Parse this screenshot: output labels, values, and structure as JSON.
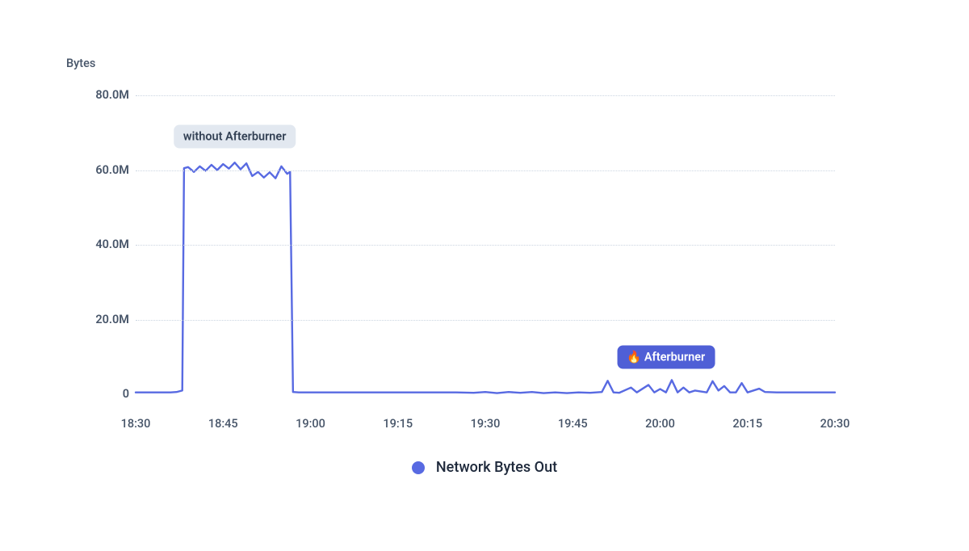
{
  "chart": {
    "type": "line",
    "y_title": "Bytes",
    "line_color": "#586ae2",
    "line_width": 2.4,
    "background_color": "#ffffff",
    "grid_color": "#cbd5e1",
    "text_color": "#475569",
    "xlim_minutes": [
      0,
      120
    ],
    "ylim": [
      0,
      80
    ],
    "y_ticks": [
      0,
      20,
      40,
      60,
      80
    ],
    "y_tick_labels": [
      "0",
      "20.0M",
      "40.0M",
      "60.0M",
      "80.0M"
    ],
    "x_ticks_minutes": [
      0,
      15,
      30,
      45,
      60,
      75,
      90,
      105,
      120
    ],
    "x_tick_labels": [
      "18:30",
      "18:45",
      "19:00",
      "19:15",
      "19:30",
      "19:45",
      "20:00",
      "20:15",
      "20:30"
    ],
    "series": [
      {
        "name": "Network Bytes Out",
        "color": "#586ae2",
        "points": [
          [
            0,
            0.5
          ],
          [
            2,
            0.5
          ],
          [
            4,
            0.5
          ],
          [
            6,
            0.5
          ],
          [
            7,
            0.6
          ],
          [
            8,
            1.0
          ],
          [
            8.3,
            60.5
          ],
          [
            9,
            60.8
          ],
          [
            10,
            59.5
          ],
          [
            11,
            61.0
          ],
          [
            12,
            59.8
          ],
          [
            13,
            61.4
          ],
          [
            14,
            60.0
          ],
          [
            15,
            61.6
          ],
          [
            16,
            60.4
          ],
          [
            17,
            62.0
          ],
          [
            18,
            60.2
          ],
          [
            19,
            61.8
          ],
          [
            20,
            58.4
          ],
          [
            21,
            59.5
          ],
          [
            22,
            58.0
          ],
          [
            23,
            59.4
          ],
          [
            24,
            57.8
          ],
          [
            25,
            61.0
          ],
          [
            26,
            59.0
          ],
          [
            26.5,
            59.5
          ],
          [
            27,
            0.6
          ],
          [
            28,
            0.5
          ],
          [
            30,
            0.5
          ],
          [
            35,
            0.5
          ],
          [
            40,
            0.5
          ],
          [
            45,
            0.5
          ],
          [
            50,
            0.5
          ],
          [
            55,
            0.5
          ],
          [
            58,
            0.4
          ],
          [
            60,
            0.6
          ],
          [
            62,
            0.3
          ],
          [
            64,
            0.6
          ],
          [
            66,
            0.4
          ],
          [
            68,
            0.6
          ],
          [
            70,
            0.3
          ],
          [
            72,
            0.5
          ],
          [
            74,
            0.3
          ],
          [
            76,
            0.5
          ],
          [
            78,
            0.4
          ],
          [
            80,
            0.6
          ],
          [
            81,
            3.6
          ],
          [
            82,
            0.5
          ],
          [
            83,
            0.4
          ],
          [
            85,
            1.8
          ],
          [
            86,
            0.5
          ],
          [
            88,
            2.5
          ],
          [
            89,
            0.5
          ],
          [
            90,
            1.4
          ],
          [
            91,
            0.5
          ],
          [
            92,
            3.8
          ],
          [
            93,
            0.5
          ],
          [
            94,
            1.8
          ],
          [
            95,
            0.5
          ],
          [
            96,
            1.0
          ],
          [
            98,
            0.5
          ],
          [
            99,
            3.5
          ],
          [
            100,
            1.0
          ],
          [
            101,
            2.2
          ],
          [
            102,
            0.5
          ],
          [
            103,
            0.5
          ],
          [
            104,
            3.0
          ],
          [
            105,
            0.5
          ],
          [
            107,
            1.5
          ],
          [
            108,
            0.6
          ],
          [
            110,
            0.5
          ],
          [
            112,
            0.5
          ],
          [
            115,
            0.5
          ],
          [
            118,
            0.5
          ],
          [
            120,
            0.5
          ]
        ]
      }
    ],
    "annotations": [
      {
        "id": "without",
        "text": "without Afterburner",
        "style": "without",
        "x_minute": 17,
        "y_value": 69,
        "bg": "#e2e8f0",
        "fg": "#334155"
      },
      {
        "id": "with",
        "text": "🔥 Afterburner",
        "style": "with",
        "x_minute": 91,
        "y_value": 10,
        "bg": "#4f5fd6",
        "fg": "#ffffff"
      }
    ],
    "legend": {
      "label": "Network Bytes Out",
      "marker_color": "#586ae2"
    }
  }
}
